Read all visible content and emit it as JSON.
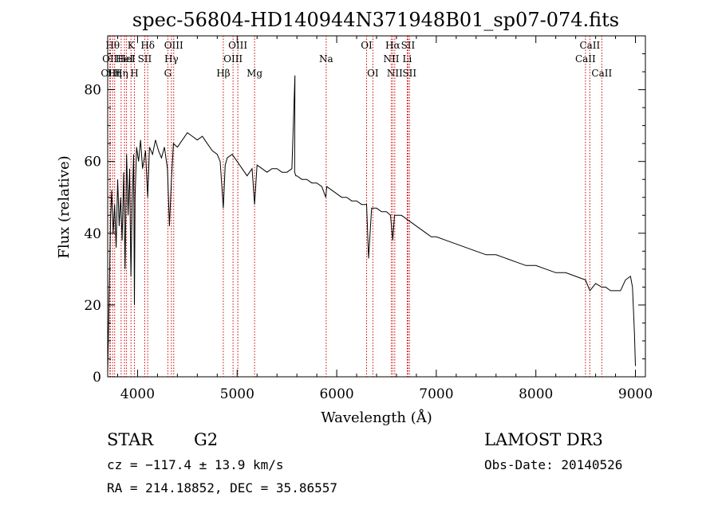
{
  "chart_data": {
    "type": "line",
    "title": "spec-56804-HD140944N371948B01_sp07-074.fits",
    "xlabel": "Wavelength (Å)",
    "ylabel": "Flux (relative)",
    "xlim": [
      3700,
      9100
    ],
    "ylim": [
      0,
      95
    ],
    "xticks": [
      4000,
      5000,
      6000,
      7000,
      8000,
      9000
    ],
    "yticks": [
      0,
      20,
      40,
      60,
      80
    ],
    "series": [
      {
        "name": "spectrum",
        "color": "#000000",
        "x": [
          3700,
          3720,
          3730,
          3740,
          3755,
          3770,
          3785,
          3800,
          3815,
          3830,
          3845,
          3860,
          3875,
          3890,
          3905,
          3920,
          3933,
          3945,
          3960,
          3968,
          3975,
          3990,
          4010,
          4030,
          4050,
          4080,
          4101,
          4120,
          4150,
          4180,
          4210,
          4240,
          4270,
          4300,
          4320,
          4340,
          4360,
          4400,
          4450,
          4500,
          4550,
          4600,
          4650,
          4700,
          4750,
          4800,
          4830,
          4861,
          4880,
          4900,
          4950,
          5000,
          5050,
          5100,
          5150,
          5175,
          5200,
          5250,
          5300,
          5350,
          5400,
          5450,
          5500,
          5550,
          5580,
          5577,
          5590,
          5600,
          5650,
          5700,
          5750,
          5800,
          5850,
          5890,
          5900,
          5950,
          6000,
          6050,
          6100,
          6150,
          6200,
          6250,
          6300,
          6320,
          6350,
          6400,
          6450,
          6500,
          6540,
          6563,
          6580,
          6600,
          6650,
          6700,
          6750,
          6800,
          6850,
          6900,
          6950,
          7000,
          7100,
          7200,
          7300,
          7400,
          7500,
          7600,
          7700,
          7800,
          7900,
          8000,
          8100,
          8200,
          8300,
          8400,
          8498,
          8542,
          8600,
          8662,
          8700,
          8750,
          8800,
          8850,
          8900,
          8950,
          8970,
          8990,
          9000
        ],
        "values": [
          1,
          30,
          45,
          52,
          40,
          48,
          36,
          55,
          42,
          50,
          38,
          57,
          30,
          62,
          45,
          58,
          28,
          48,
          62,
          20,
          50,
          64,
          60,
          66,
          58,
          63,
          50,
          64,
          62,
          66,
          63,
          61,
          64,
          58,
          42,
          55,
          65,
          64,
          66,
          68,
          67,
          66,
          67,
          65,
          63,
          62,
          60,
          47,
          59,
          61,
          62,
          60,
          58,
          56,
          58,
          48,
          59,
          58,
          57,
          58,
          58,
          57,
          57,
          58,
          84,
          57,
          56,
          56,
          55,
          55,
          54,
          54,
          53,
          50,
          53,
          52,
          51,
          50,
          50,
          49,
          49,
          48,
          48,
          33,
          47,
          47,
          46,
          46,
          45,
          38,
          45,
          45,
          45,
          44,
          43,
          42,
          41,
          40,
          39,
          39,
          38,
          37,
          36,
          35,
          34,
          34,
          33,
          32,
          31,
          31,
          30,
          29,
          29,
          28,
          27,
          24,
          26,
          25,
          25,
          24,
          24,
          24,
          27,
          28,
          25,
          12,
          3
        ]
      }
    ],
    "lines": [
      {
        "wl": 3722,
        "label": "OII",
        "row": 1
      },
      {
        "wl": 3727,
        "label": "OIII",
        "row": 2
      },
      {
        "wl": 3750,
        "label": "Hθ",
        "row": 0
      },
      {
        "wl": 3770,
        "label": "Hη",
        "row": 2
      },
      {
        "wl": 3835,
        "label": "Hη",
        "row": 2
      },
      {
        "wl": 3869,
        "label": "HeI",
        "row": 1
      },
      {
        "wl": 3889,
        "label": "HeI",
        "row": 1
      },
      {
        "wl": 3934,
        "label": "K",
        "row": 0
      },
      {
        "wl": 3968,
        "label": "H",
        "row": 2
      },
      {
        "wl": 4072,
        "label": "SII",
        "row": 1
      },
      {
        "wl": 4102,
        "label": "Hδ",
        "row": 0
      },
      {
        "wl": 4304,
        "label": "G",
        "row": 2
      },
      {
        "wl": 4340,
        "label": "Hγ",
        "row": 1
      },
      {
        "wl": 4363,
        "label": "OIII",
        "row": 0
      },
      {
        "wl": 4861,
        "label": "Hβ",
        "row": 2
      },
      {
        "wl": 4959,
        "label": "OIII",
        "row": 1
      },
      {
        "wl": 5007,
        "label": "OIII",
        "row": 0
      },
      {
        "wl": 5175,
        "label": "Mg",
        "row": 2
      },
      {
        "wl": 5894,
        "label": "Na",
        "row": 1
      },
      {
        "wl": 6300,
        "label": "OI",
        "row": 0
      },
      {
        "wl": 6363,
        "label": "OI",
        "row": 2
      },
      {
        "wl": 6548,
        "label": "NII",
        "row": 1
      },
      {
        "wl": 6563,
        "label": "Hα",
        "row": 0
      },
      {
        "wl": 6583,
        "label": "NII",
        "row": 2
      },
      {
        "wl": 6708,
        "label": "Li",
        "row": 1
      },
      {
        "wl": 6716,
        "label": "SII",
        "row": 0
      },
      {
        "wl": 6731,
        "label": "SII",
        "row": 2
      },
      {
        "wl": 8498,
        "label": "CaII",
        "row": 1
      },
      {
        "wl": 8542,
        "label": "CaII",
        "row": 0
      },
      {
        "wl": 8662,
        "label": "CaII",
        "row": 2
      }
    ]
  },
  "info": {
    "object_class": "STAR",
    "subclass": "G2",
    "survey": "LAMOST DR3",
    "redshift": "cz = −117.4 ± 13.9 km/s",
    "obs_date": "Obs-Date: 20140526",
    "coords": "RA = 214.18852, DEC =  35.86557"
  }
}
